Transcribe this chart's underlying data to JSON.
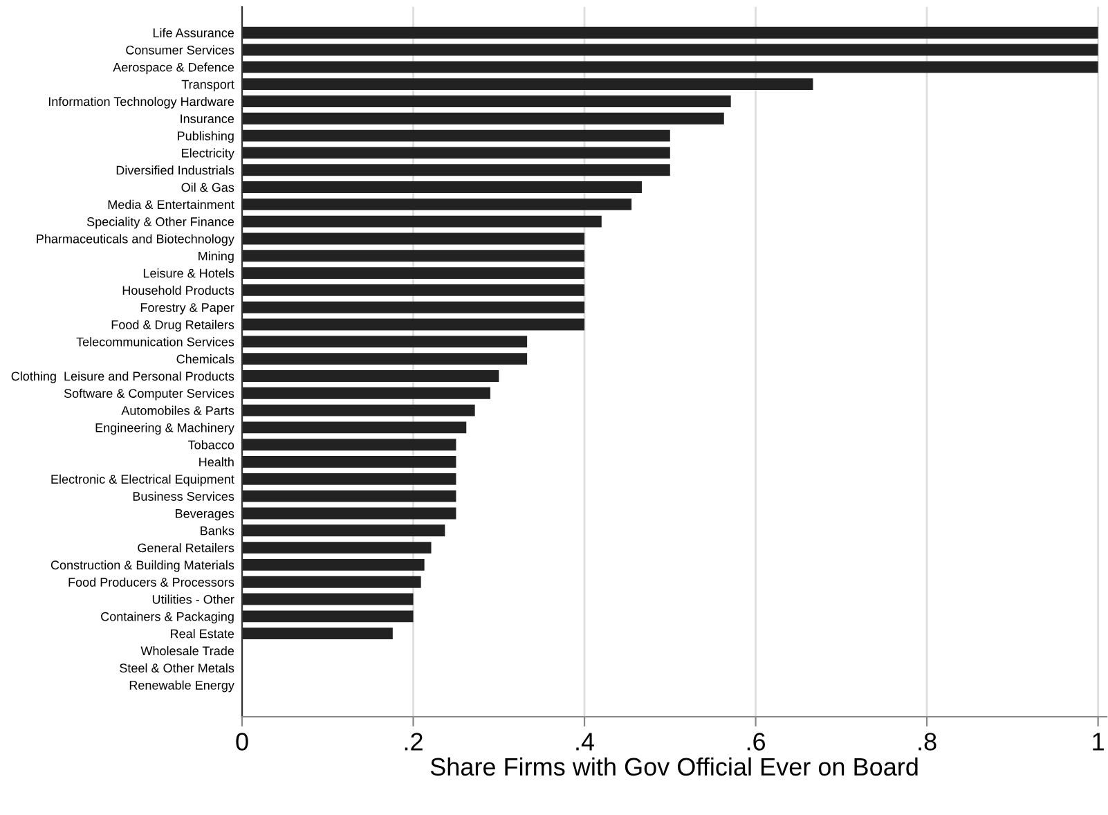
{
  "chart_data": {
    "type": "bar",
    "orientation": "horizontal",
    "xlabel": "Share Firms with Gov Official Ever on Board",
    "categories": [
      "Life Assurance",
      "Consumer Services",
      "Aerospace & Defence",
      "Transport",
      "Information Technology Hardware",
      "Insurance",
      "Publishing",
      "Electricity",
      "Diversified Industrials",
      "Oil & Gas",
      "Media & Entertainment",
      "Speciality & Other Finance",
      "Pharmaceuticals and Biotechnology",
      "Mining",
      "Leisure & Hotels",
      "Household Products",
      "Forestry & Paper",
      "Food & Drug Retailers",
      "Telecommunication Services",
      "Chemicals",
      "Clothing  Leisure and Personal Products",
      "Software & Computer Services",
      "Automobiles & Parts",
      "Engineering & Machinery",
      "Tobacco",
      "Health",
      "Electronic & Electrical Equipment",
      "Business Services",
      "Beverages",
      "Banks",
      "General Retailers",
      "Construction & Building Materials",
      "Food Producers & Processors",
      "Utilities - Other",
      "Containers & Packaging",
      "Real Estate",
      "Wholesale Trade",
      "Steel & Other Metals",
      "Renewable Energy"
    ],
    "values": [
      1,
      1,
      1,
      0.667,
      0.571,
      0.563,
      0.5,
      0.5,
      0.5,
      0.467,
      0.455,
      0.42,
      0.4,
      0.4,
      0.4,
      0.4,
      0.4,
      0.4,
      0.333,
      0.333,
      0.3,
      0.29,
      0.272,
      0.262,
      0.25,
      0.25,
      0.25,
      0.25,
      0.25,
      0.237,
      0.221,
      0.213,
      0.209,
      0.2,
      0.2,
      0.176,
      0,
      0,
      0
    ],
    "color": "#222222",
    "xlim": [
      0,
      1.01
    ],
    "xticks": [
      {
        "value": 0,
        "label": "0"
      },
      {
        "value": 0.2,
        "label": ".2"
      },
      {
        "value": 0.4,
        "label": ".4"
      },
      {
        "value": 0.6,
        "label": ".6"
      },
      {
        "value": 0.8,
        "label": ".8"
      },
      {
        "value": 1,
        "label": "1"
      }
    ],
    "grid": "x",
    "legend": false
  }
}
